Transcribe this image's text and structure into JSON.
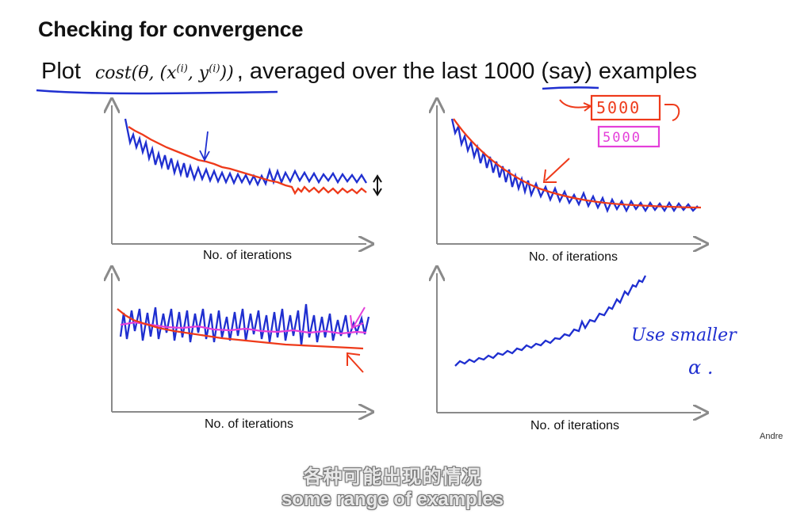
{
  "title": "Checking for convergence",
  "subtitle": {
    "prefix": "Plot",
    "math_cost": "cost(θ, (x",
    "math_sup_x": "(i)",
    "math_mid": ", y",
    "math_sup_y": "(i)",
    "math_end": "))",
    "suffix": ", averaged over the last 1000 (say) examples"
  },
  "plots": {
    "top_left": {
      "xlabel": "No. of iterations"
    },
    "top_right": {
      "xlabel": "No. of iterations",
      "box_red": "5000",
      "box_pink": "5000"
    },
    "bottom_left": {
      "xlabel": "No. of iterations"
    },
    "bottom_right": {
      "xlabel": "No. of iterations",
      "note_line1": "Use smaller",
      "note_line2": "α ."
    }
  },
  "credit": "Andre",
  "captions": {
    "zh": "各种可能出现的情况",
    "en": "some range of examples"
  },
  "colors": {
    "blue": "#1f2fd0",
    "red": "#ee3a1a",
    "pink": "#e43fd9",
    "axis": "#8a8a8a"
  }
}
